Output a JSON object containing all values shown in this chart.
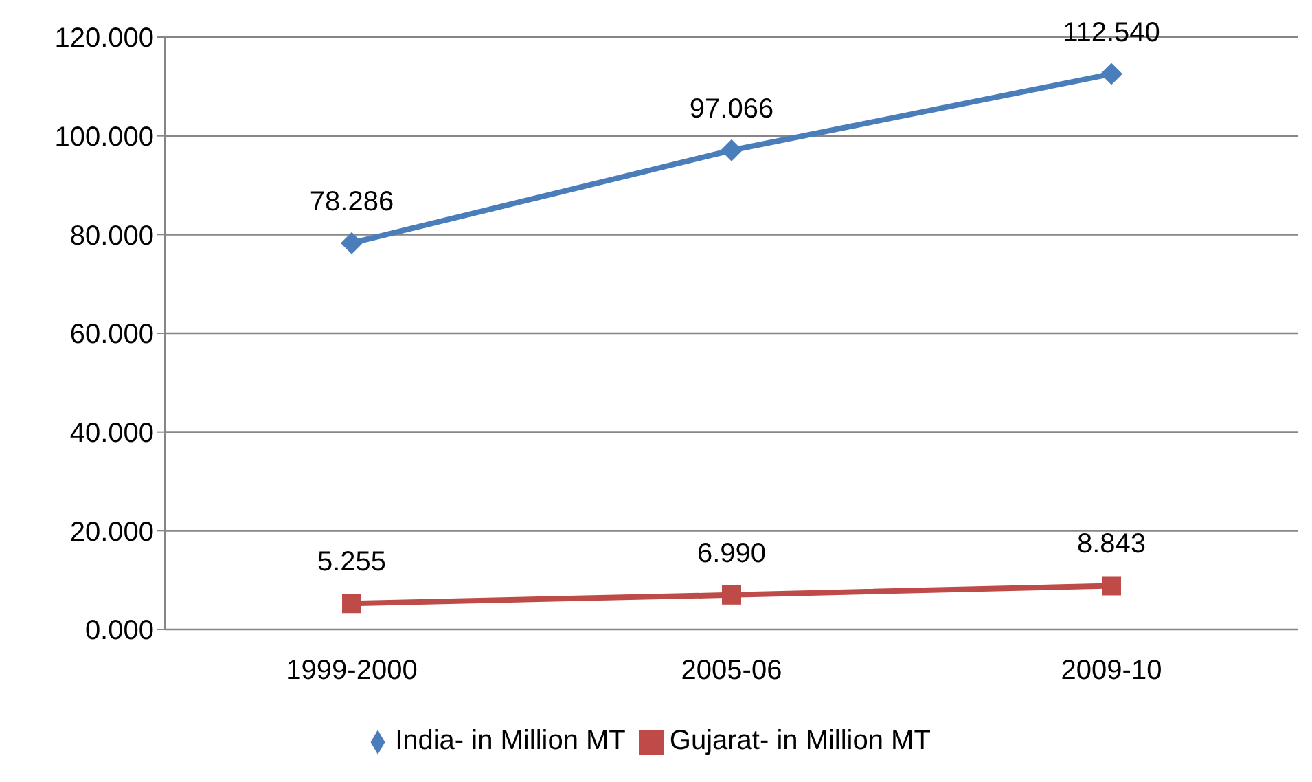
{
  "chart_data": {
    "type": "line",
    "categories": [
      "1999-2000",
      "2005-06",
      "2009-10"
    ],
    "series": [
      {
        "name": "India- in   Million MT",
        "color": "#4a7ebb",
        "marker": "diamond",
        "values": [
          78.286,
          97.066,
          112.54
        ],
        "value_labels": [
          "78.286",
          "97.066",
          "112.540"
        ]
      },
      {
        "name": "Gujarat- in   Million MT",
        "color": "#be4b48",
        "marker": "square",
        "values": [
          5.255,
          6.99,
          8.843
        ],
        "value_labels": [
          "5.255",
          "6.990",
          "8.843"
        ]
      }
    ],
    "ylim": [
      0,
      120
    ],
    "yticks": [
      {
        "value": 0,
        "label": "0.000"
      },
      {
        "value": 20,
        "label": "20.000"
      },
      {
        "value": 40,
        "label": "40.000"
      },
      {
        "value": 60,
        "label": "60.000"
      },
      {
        "value": 80,
        "label": "80.000"
      },
      {
        "value": 100,
        "label": "100.000"
      },
      {
        "value": 120,
        "label": "120.000"
      }
    ],
    "grid": "y",
    "legend": "bottom"
  }
}
